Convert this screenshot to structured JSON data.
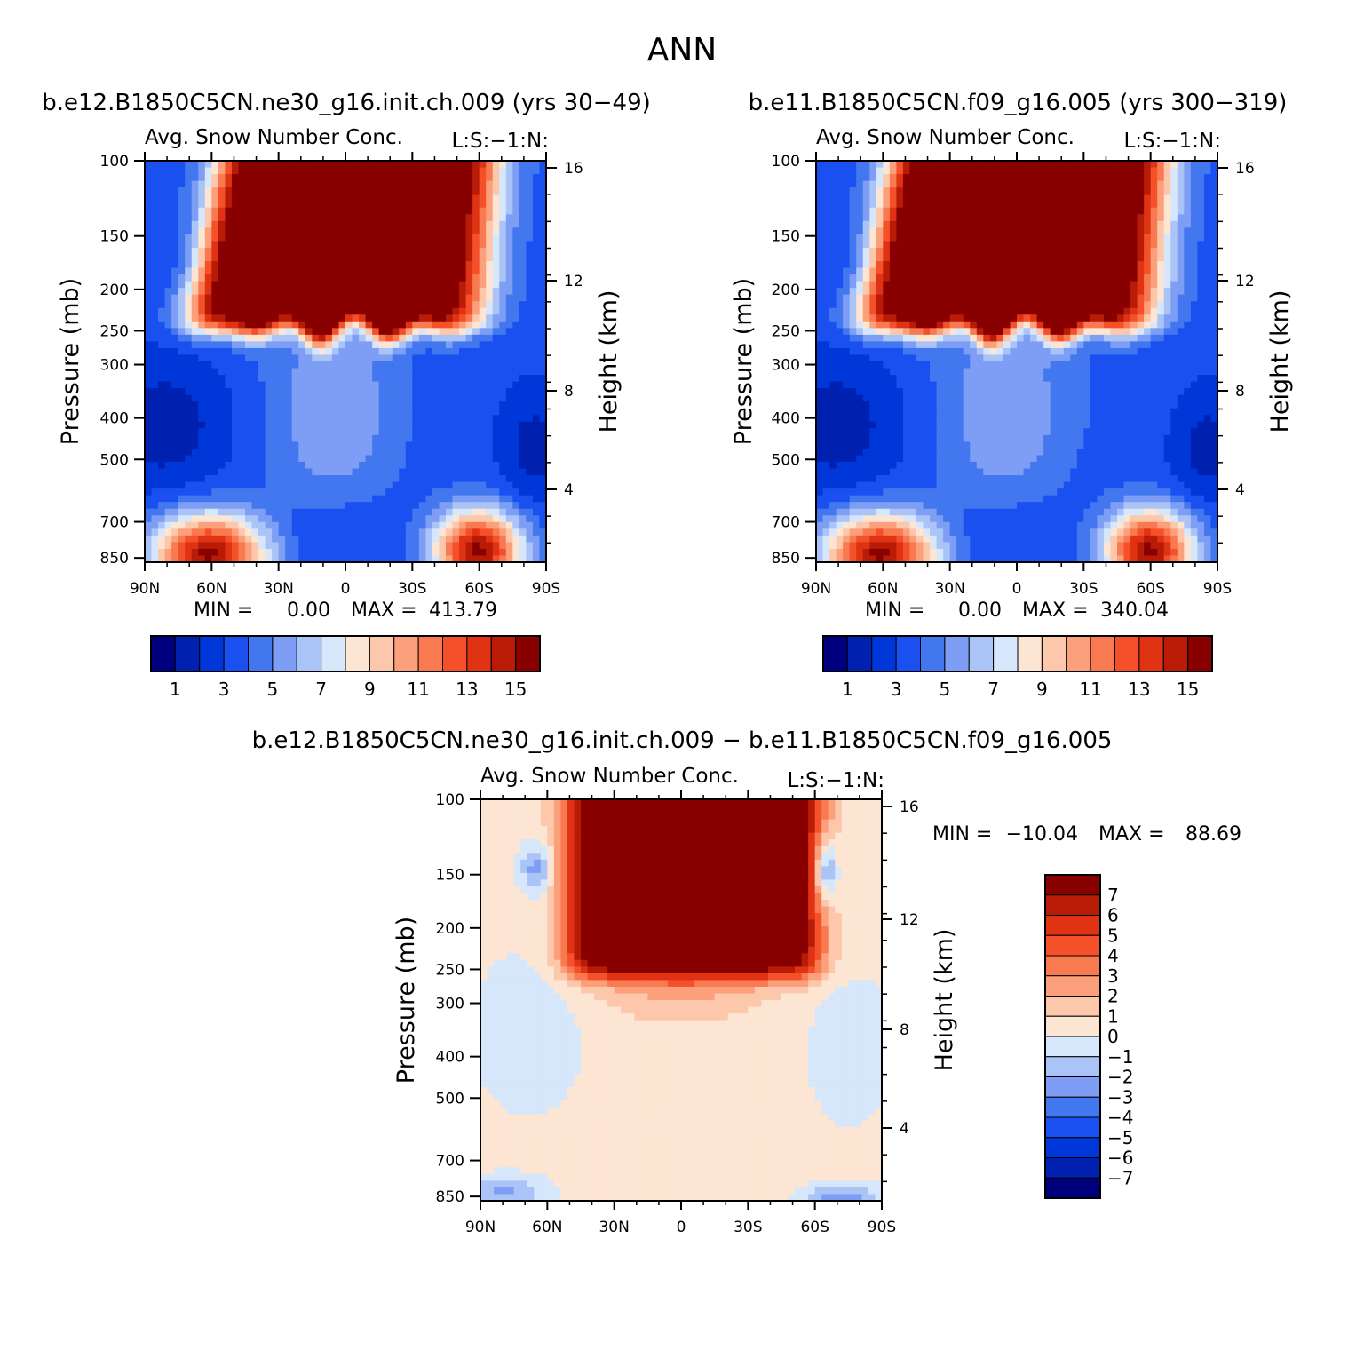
{
  "figure": {
    "title": "ANN"
  },
  "chart_data": [
    {
      "type": "heatmap",
      "id": "p1",
      "title": "b.e12.B1850C5CN.ne30_g16.init.ch.009 (yrs 30−49)",
      "subtitle_left": "Avg. Snow Number Conc.",
      "subtitle_right": "L:S:−1:N:",
      "ylabel": "Pressure (mb)",
      "y2label": "Height (km)",
      "xticks": [
        "90N",
        "60N",
        "30N",
        "0",
        "30S",
        "60S",
        "90S"
      ],
      "yticks": [
        100,
        150,
        200,
        250,
        300,
        400,
        500,
        700,
        850
      ],
      "y2ticks": [
        16,
        12,
        8,
        4
      ],
      "min_label": "MIN =",
      "min": "0.00",
      "max_label": "MAX =",
      "max": "413.79",
      "colorbar_labels": [
        "1",
        "3",
        "5",
        "7",
        "9",
        "11",
        "13",
        "15"
      ]
    },
    {
      "type": "heatmap",
      "id": "p2",
      "title": "b.e11.B1850C5CN.f09_g16.005 (yrs 300−319)",
      "subtitle_left": "Avg. Snow Number Conc.",
      "subtitle_right": "L:S:−1:N:",
      "ylabel": "Pressure (mb)",
      "y2label": "Height (km)",
      "xticks": [
        "90N",
        "60N",
        "30N",
        "0",
        "30S",
        "60S",
        "90S"
      ],
      "yticks": [
        100,
        150,
        200,
        250,
        300,
        400,
        500,
        700,
        850
      ],
      "y2ticks": [
        16,
        12,
        8,
        4
      ],
      "min_label": "MIN =",
      "min": "0.00",
      "max_label": "MAX =",
      "max": "340.04",
      "colorbar_labels": [
        "1",
        "3",
        "5",
        "7",
        "9",
        "11",
        "13",
        "15"
      ]
    },
    {
      "type": "heatmap",
      "id": "p3",
      "title": "b.e12.B1850C5CN.ne30_g16.init.ch.009 − b.e11.B1850C5CN.f09_g16.005",
      "subtitle_left": "Avg. Snow Number Conc.",
      "subtitle_right": "L:S:−1:N:",
      "ylabel": "Pressure (mb)",
      "y2label": "Height (km)",
      "xticks": [
        "90N",
        "60N",
        "30N",
        "0",
        "30S",
        "60S",
        "90S"
      ],
      "yticks": [
        100,
        150,
        200,
        250,
        300,
        400,
        500,
        700,
        850
      ],
      "y2ticks": [
        16,
        12,
        8,
        4
      ],
      "min_label": "MIN =",
      "min": "−10.04",
      "max_label": "MAX =",
      "max": "88.69",
      "colorbar_labels": [
        "7",
        "6",
        "5",
        "4",
        "3",
        "2",
        "1",
        "0",
        "−1",
        "−2",
        "−3",
        "−4",
        "−5",
        "−6",
        "−7"
      ]
    }
  ],
  "colors": {
    "blue_red_16": [
      "#00007f",
      "#0020b0",
      "#0037d8",
      "#1a50f0",
      "#4377f0",
      "#7d9ef4",
      "#aac4f8",
      "#d6e6fb",
      "#fde5d3",
      "#fdc7ab",
      "#fca07c",
      "#f97a50",
      "#f4512b",
      "#e03314",
      "#b81c06",
      "#880000"
    ]
  }
}
